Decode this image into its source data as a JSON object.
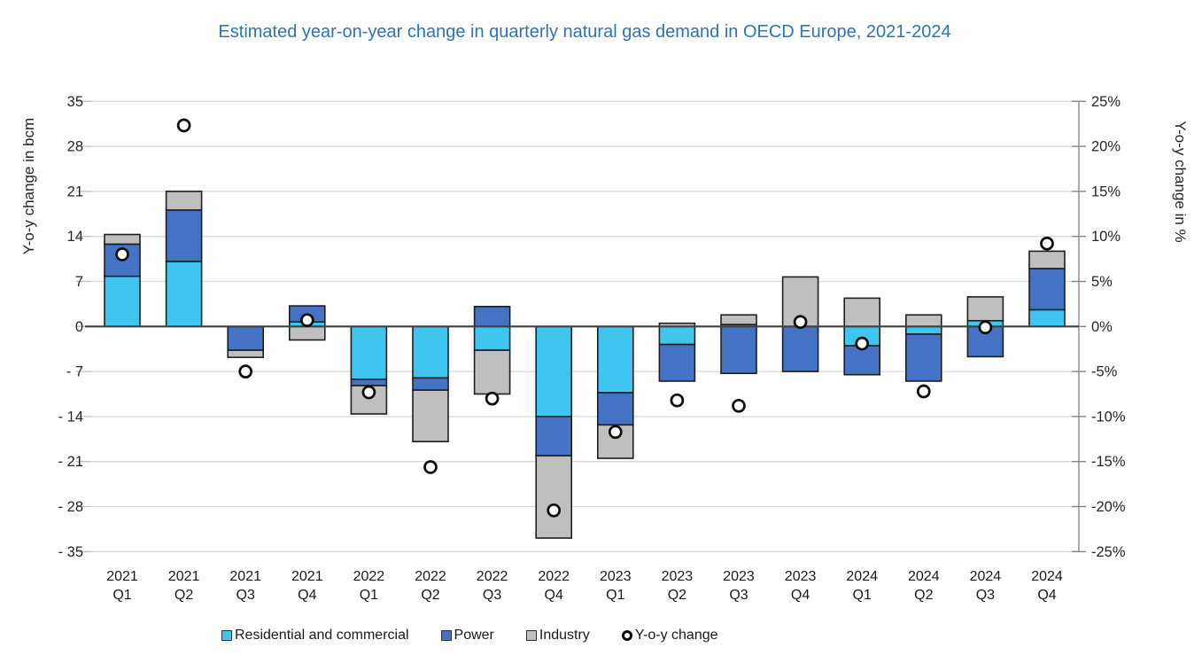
{
  "title": "Estimated year-on-year change in quarterly natural gas demand in OECD Europe, 2021-2024",
  "chart_data": {
    "type": "bar",
    "subtype": "stacked-bars-with-scatter-overlay",
    "categories": [
      [
        "2021",
        "Q1"
      ],
      [
        "2021",
        "Q2"
      ],
      [
        "2021",
        "Q3"
      ],
      [
        "2021",
        "Q4"
      ],
      [
        "2022",
        "Q1"
      ],
      [
        "2022",
        "Q2"
      ],
      [
        "2022",
        "Q3"
      ],
      [
        "2022",
        "Q4"
      ],
      [
        "2023",
        "Q1"
      ],
      [
        "2023",
        "Q2"
      ],
      [
        "2023",
        "Q3"
      ],
      [
        "2023",
        "Q4"
      ],
      [
        "2024",
        "Q1"
      ],
      [
        "2024",
        "Q2"
      ],
      [
        "2024",
        "Q3"
      ],
      [
        "2024",
        "Q4"
      ]
    ],
    "series": [
      {
        "name": "Residential and commercial",
        "color": "#3EC6F0",
        "values": [
          7.8,
          10.1,
          0,
          0.7,
          -8.2,
          -8.0,
          -3.7,
          -14.0,
          -10.3,
          -2.8,
          0.3,
          0,
          -3.0,
          -1.2,
          0.9,
          2.6
        ]
      },
      {
        "name": "Power",
        "color": "#4472C4",
        "values": [
          5.0,
          8.0,
          -3.7,
          2.5,
          -1.0,
          -1.9,
          3.1,
          -6.1,
          -5.0,
          -5.7,
          -7.3,
          -7.0,
          -4.5,
          -7.3,
          -4.7,
          6.4
        ]
      },
      {
        "name": "Industry",
        "color": "#BFBFBF",
        "values": [
          1.5,
          2.9,
          -1.1,
          -2.1,
          -4.4,
          -8.0,
          -6.8,
          -12.8,
          -5.2,
          0.5,
          1.5,
          7.7,
          4.4,
          1.8,
          3.7,
          2.7
        ]
      }
    ],
    "scatter": {
      "name": "Y-o-y change",
      "axis": "right",
      "marker": "open-circle",
      "values": [
        8.0,
        22.3,
        -5.0,
        0.7,
        -7.3,
        -15.6,
        -8.0,
        -20.4,
        -11.7,
        -8.2,
        -8.8,
        0.5,
        -1.9,
        -7.2,
        -0.1,
        9.2
      ]
    },
    "left_axis": {
      "title": "Y-o-y change in bcm",
      "min": -35,
      "max": 35,
      "step": 7,
      "ticks": [
        "35",
        "28",
        "21",
        "14",
        "7",
        "0",
        "- 7",
        "- 14",
        "- 21",
        "- 28",
        "- 35"
      ]
    },
    "right_axis": {
      "title": "Y-o-y change in %",
      "min": -25,
      "max": 25,
      "step": 5,
      "ticks": [
        "25%",
        "20%",
        "15%",
        "10%",
        "5%",
        "0%",
        "-5%",
        "-10%",
        "-15%",
        "-20%",
        "-25%"
      ]
    },
    "grid": true,
    "legend_position": "bottom",
    "colors": {
      "title": "#2E74B5",
      "gridline": "#D9D9D9",
      "zero_line": "#404040",
      "bar_border": "#1F1F1F",
      "axis_line": "#808080",
      "tick_text": "#262626"
    }
  }
}
